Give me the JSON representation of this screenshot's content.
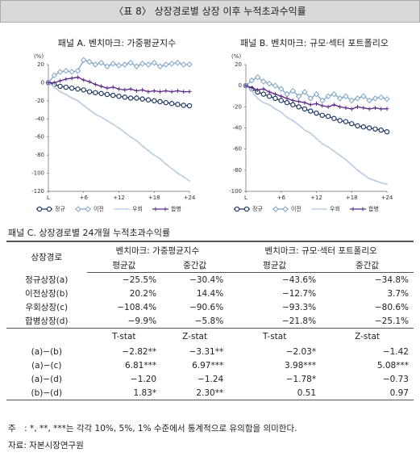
{
  "title": "〈표 8〉 상장경로별 상장 이후 누적초과수익률",
  "chart_data": [
    {
      "type": "line",
      "title": "패널 A. 벤치마크: 가중평균지수",
      "y_label": "(%)",
      "x": [
        0,
        1,
        2,
        3,
        4,
        5,
        6,
        7,
        8,
        9,
        10,
        11,
        12,
        13,
        14,
        15,
        16,
        17,
        18,
        19,
        20,
        21,
        22,
        23,
        24
      ],
      "xlim": [
        0,
        24
      ],
      "xticks": [
        {
          "value": 0,
          "label": "L"
        },
        {
          "value": 6,
          "label": "+6"
        },
        {
          "value": 12,
          "label": "+12"
        },
        {
          "value": 18,
          "label": "+18"
        },
        {
          "value": 24,
          "label": "+24"
        }
      ],
      "ylim": [
        -120,
        20
      ],
      "yticks": [
        20,
        0,
        -20,
        -40,
        -60,
        -80,
        -100,
        -120
      ],
      "series": [
        {
          "name": "정규",
          "color": "#1f3864",
          "values": [
            0,
            -2,
            -4,
            -5,
            -6,
            -7,
            -8,
            -10,
            -11,
            -12,
            -13,
            -14,
            -15,
            -16,
            -17,
            -17,
            -18,
            -19,
            -20,
            -21,
            -22,
            -23,
            -24,
            -25,
            -25.5
          ]
        },
        {
          "name": "이전",
          "color": "#7fa7c9",
          "values": [
            0,
            8,
            12,
            13,
            12,
            13,
            25,
            23,
            20,
            22,
            18,
            21,
            19,
            20,
            22,
            18,
            21,
            20,
            22,
            18,
            20,
            21,
            22,
            20,
            20.2
          ]
        },
        {
          "name": "우회",
          "color": "#b8cce4",
          "values": [
            0,
            -5,
            -10,
            -13,
            -17,
            -20,
            -25,
            -30,
            -35,
            -38,
            -42,
            -46,
            -50,
            -55,
            -60,
            -64,
            -70,
            -75,
            -80,
            -84,
            -90,
            -95,
            -100,
            -104,
            -108.4
          ]
        },
        {
          "name": "합병",
          "color": "#5b2a86",
          "values": [
            0,
            0,
            2,
            4,
            5,
            6,
            3,
            1,
            -2,
            -4,
            -6,
            -5,
            -7,
            -8,
            -7,
            -9,
            -8,
            -10,
            -9,
            -10,
            -9,
            -10,
            -9,
            -10,
            -9.9
          ]
        }
      ]
    },
    {
      "type": "line",
      "title": "패널 B. 벤치마크: 규모·섹터 포트폴리오",
      "y_label": "(%)",
      "x": [
        0,
        1,
        2,
        3,
        4,
        5,
        6,
        7,
        8,
        9,
        10,
        11,
        12,
        13,
        14,
        15,
        16,
        17,
        18,
        19,
        20,
        21,
        22,
        23,
        24
      ],
      "xlim": [
        0,
        24
      ],
      "xticks": [
        {
          "value": 0,
          "label": "L"
        },
        {
          "value": 6,
          "label": "+6"
        },
        {
          "value": 12,
          "label": "+12"
        },
        {
          "value": 18,
          "label": "+18"
        },
        {
          "value": 24,
          "label": "+24"
        }
      ],
      "ylim": [
        -100,
        20
      ],
      "yticks": [
        20,
        0,
        -20,
        -40,
        -60,
        -80,
        -100
      ],
      "series": [
        {
          "name": "정규",
          "color": "#1f3864",
          "values": [
            0,
            -3,
            -6,
            -8,
            -10,
            -12,
            -14,
            -16,
            -18,
            -20,
            -22,
            -24,
            -26,
            -28,
            -29,
            -31,
            -33,
            -34,
            -36,
            -38,
            -39,
            -40,
            -41,
            -42,
            -43.6
          ]
        },
        {
          "name": "이전",
          "color": "#7fa7c9",
          "values": [
            0,
            5,
            8,
            4,
            2,
            0,
            -3,
            -8,
            -5,
            -10,
            -6,
            -12,
            -8,
            -14,
            -10,
            -8,
            -12,
            -10,
            -14,
            -12,
            -10,
            -14,
            -12,
            -11,
            -12.7
          ]
        },
        {
          "name": "우회",
          "color": "#b8cce4",
          "values": [
            0,
            -5,
            -12,
            -16,
            -18,
            -22,
            -25,
            -30,
            -33,
            -37,
            -42,
            -45,
            -50,
            -55,
            -58,
            -62,
            -66,
            -70,
            -75,
            -80,
            -84,
            -88,
            -90,
            -92,
            -93.3
          ]
        },
        {
          "name": "합병",
          "color": "#5b2a86",
          "values": [
            0,
            -2,
            -4,
            -3,
            -6,
            -8,
            -10,
            -12,
            -14,
            -15,
            -16,
            -18,
            -17,
            -19,
            -20,
            -18,
            -20,
            -21,
            -22,
            -20,
            -21,
            -22,
            -21,
            -22,
            -21.8
          ]
        }
      ]
    }
  ],
  "panel_c": {
    "title": "패널 C. 상장경로별 24개월 누적초과수익률",
    "header": {
      "row_label": "상장경로",
      "groups": [
        "벤치마크: 가중평균지수",
        "벤치마크: 규모·섹터 포트폴리오"
      ],
      "sub": [
        "평균값",
        "중간값",
        "평균값",
        "중간값"
      ]
    },
    "rows": [
      [
        "정규상장(a)",
        "−25.5%",
        "−30.4%",
        "−43.6%",
        "−34.8%"
      ],
      [
        "이전상장(b)",
        "20.2%",
        "14.4%",
        "−12.7%",
        "3.7%"
      ],
      [
        "우회상장(c)",
        "−108.4%",
        "−90.6%",
        "−93.3%",
        "−80.6%"
      ],
      [
        "합병상장(d)",
        "−9.9%",
        "−5.8%",
        "−21.8%",
        "−25.1%"
      ]
    ],
    "stat_header": [
      "T-stat",
      "Z-stat",
      "T-stat",
      "Z-stat"
    ],
    "stat_rows": [
      [
        "(a)−(b)",
        "−2.82**",
        "−3.31**",
        "−2.03*",
        "−1.42"
      ],
      [
        "(a)−(c)",
        "6.81***",
        "6.97***",
        "3.98***",
        "5.08***"
      ],
      [
        "(a)−(d)",
        "−1.20",
        "−1.24",
        "−1.78*",
        "−0.73"
      ],
      [
        "(b)−(d)",
        "1.83*",
        "2.30**",
        "0.51",
        "0.97"
      ]
    ]
  },
  "notes": [
    "주　: *, **, ***는 각각 10%, 5%, 1% 수준에서 통계적으로 유의함을 의미한다.",
    "자료: 자본시장연구원"
  ]
}
